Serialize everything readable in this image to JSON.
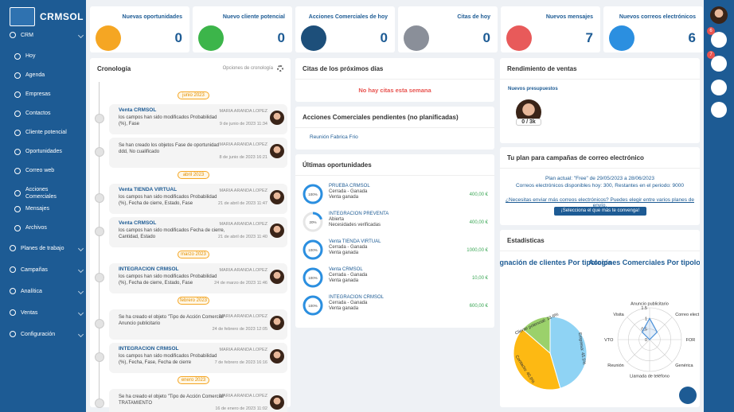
{
  "brand": "CRMSOL",
  "nav": {
    "groups": [
      {
        "label": "CRM",
        "items": [
          "Hoy",
          "Agenda",
          "Empresas",
          "Contactos",
          "Cliente potencial",
          "Oportunidades",
          "Correo web",
          "Acciones Comerciales",
          "Mensajes",
          "Archivos"
        ]
      },
      {
        "label": "Planes de trabajo"
      },
      {
        "label": "Campañas"
      },
      {
        "label": "Analítica"
      },
      {
        "label": "Ventas"
      },
      {
        "label": "Configuración"
      }
    ]
  },
  "stats": {
    "cards": [
      {
        "title": "Nuevas oportunidades",
        "value": 0
      },
      {
        "title": "Nuevo cliente potencial",
        "value": 0
      },
      {
        "title": "Acciones Comerciales de hoy",
        "value": 0
      },
      {
        "title": "Citas de hoy",
        "value": 0
      },
      {
        "title": "Nuevos mensajes",
        "value": 7
      },
      {
        "title": "Nuevos correos electrónicos",
        "value": 6
      }
    ]
  },
  "rail": {
    "badges": [
      "6",
      "7"
    ]
  },
  "timeline": {
    "title": "Cronología",
    "options": "Opciones de cronología",
    "items": [
      {
        "month": "junio 2023"
      },
      {
        "title": "Venta CRMSOL",
        "text": "los campos han sido modificados Probabilidad (%), Fase",
        "user": "MARIA ARANDA LOPEZ",
        "date": "9 de junio de 2023 11:34"
      },
      {
        "text": "Se han creado los objetos Fase de oportunidad ddd, No cualificado",
        "user": "MARIA ARANDA LOPEZ",
        "date": "8 de junio de 2023 16:21"
      },
      {
        "month": "abril 2023"
      },
      {
        "title": "Venta TIENDA VIRTUAL",
        "text": "los campos han sido modificados Probabilidad (%), Fecha de cierre, Estado, Fase",
        "user": "MARIA ARANDA LOPEZ",
        "date": "21 de abril de 2023 11:47"
      },
      {
        "title": "Venta CRMSOL",
        "text": "los campos han sido modificados Fecha de cierre, Cantidad, Estado",
        "user": "MARIA ARANDA LOPEZ",
        "date": "21 de abril de 2023 11:40"
      },
      {
        "month": "marzo 2023"
      },
      {
        "title": "INTEGRACION CRMSOL",
        "text": "los campos han sido modificados Probabilidad (%), Fecha de cierre, Estado, Fase",
        "user": "MARIA ARANDA LOPEZ",
        "date": "24 de marzo de 2023 11:46"
      },
      {
        "month": "febrero 2023"
      },
      {
        "text": "Se ha creado el objeto \"Tipo de Acción Comercial\" Anuncio publicitario",
        "user": "MARIA ARANDA LOPEZ",
        "date": "24 de febrero de 2023 12:05"
      },
      {
        "title": "INTEGRACION CRMSOL",
        "text": "los campos han sido modificados Probabilidad (%), Fecha, Fase, Fecha de cierre",
        "user": "MARIA ARANDA LOPEZ",
        "date": "7 de febrero de 2023 16:16"
      },
      {
        "month": "enero 2023"
      },
      {
        "text": "Se ha creado el objeto \"Tipo de Acción Comercial\" TRATAMIENTO",
        "user": "MARIA ARANDA LOPEZ",
        "date": "16 de enero de 2023 11:02"
      }
    ]
  },
  "appointments": {
    "title": "Citas de los próximos días",
    "empty": "No hay citas esta semana"
  },
  "pending": {
    "title": "Acciones Comerciales pendientes (no planificadas)",
    "items": [
      "Reunión Fabrica Frio"
    ]
  },
  "opportunities": {
    "title": "Últimas oportunidades",
    "rows": [
      {
        "name": "PRUEBA CRMSOL",
        "status": "Cerrada - Ganada",
        "stage": "Venta ganada",
        "amount": "400,00 €",
        "progress": 100,
        "progress_label": "100%"
      },
      {
        "name": "INTEGRACION PREVENTA",
        "status": "Abierta",
        "stage": "Necesidades verificadas",
        "amount": "400,00 €",
        "progress": 20,
        "progress_label": "20%"
      },
      {
        "name": "Venta TIENDA VIRTUAL",
        "status": "Cerrada - Ganada",
        "stage": "Venta ganada",
        "amount": "1000,00 €",
        "progress": 100,
        "progress_label": "100%"
      },
      {
        "name": "Venta CRMSOL",
        "status": "Cerrada - Ganada",
        "stage": "Venta ganada",
        "amount": "10,00 €",
        "progress": 100,
        "progress_label": "100%"
      },
      {
        "name": "INTEGRACION CRMSOL",
        "status": "Cerrada - Ganada",
        "stage": "Venta ganada",
        "amount": "600,00 €",
        "progress": 100,
        "progress_label": "100%"
      }
    ]
  },
  "sales": {
    "title": "Rendimiento de ventas",
    "subtitle": "Nuevos presupuestos",
    "badge": "0 / 3k"
  },
  "plan": {
    "title": "Tu plan para campañas de correo electrónico",
    "lines": [
      "Plan actual: \"Free\" de 29/05/2023 a 28/06/2023",
      "Correos electrónicos disponibles hoy: 300, Restantes en el periodo: 9000"
    ],
    "link": "¿Necesitas enviar más correos electrónicos? Puedes elegir entre varios planes de envío.",
    "button": "¡Selecciona el que más te convenga!"
  },
  "statistics": {
    "title": "Estadísticas",
    "charts": [
      {
        "type": "pie",
        "title": "Asignación de clientes Por tipología",
        "categories": [
          "Empresa",
          "Contacto",
          "Cliente potencial"
        ],
        "values": [
          45.5,
          40.9,
          13.6
        ],
        "value_labels": [
          "Empresa: 45.5%",
          "Contacto: 40.9%",
          "Cliente potencial: 13.6%"
        ],
        "colors": [
          "#8fd3f4",
          "#fdb913",
          "#9bd16b"
        ]
      },
      {
        "type": "radar",
        "title": "Acciones Comerciales Por tipología",
        "categories": [
          "Anuncio publicitario",
          "Correo elect",
          "FOR",
          "Genérica",
          "Llamada de teléfono",
          "Reunión",
          "VTO",
          "Visita"
        ],
        "values": [
          1,
          0.5,
          0,
          0,
          0,
          0,
          0,
          0.5
        ],
        "rlim": [
          0,
          1.5
        ],
        "rticks": [
          0,
          0.5,
          1,
          1.5
        ],
        "color": "#4a90d9"
      }
    ]
  }
}
